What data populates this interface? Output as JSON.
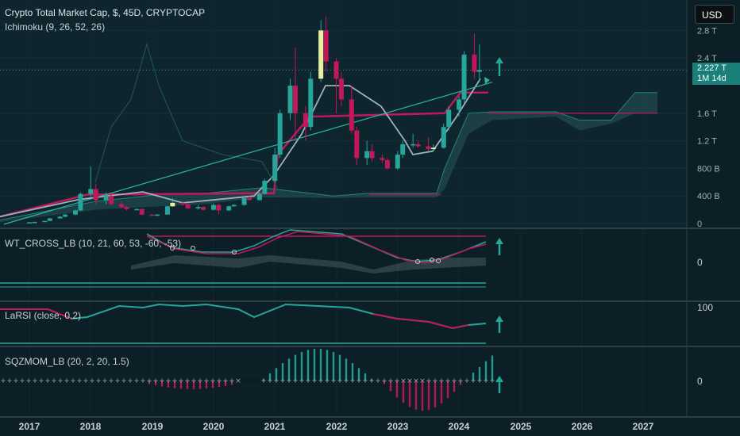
{
  "header": {
    "title": "Crypto Total Market Cap, $, 45D, CRYPTOCAP",
    "indicator": "Ichimoku (9, 26, 52, 26)",
    "currency_button": "USD"
  },
  "price_tag": {
    "value": "2.227 T",
    "countdown": "1M 14d"
  },
  "colors": {
    "background": "#0c1f26",
    "bull": "#26a69a",
    "bear": "#c2185b",
    "doji_highlight": "#e8f0a0",
    "cloud": "#2e5d63",
    "kijun": "#c2185b",
    "tenkan": "#9fb3b8",
    "trendline": "#2bb5a7",
    "arrow": "#26a69a"
  },
  "panes": {
    "wt": {
      "label": "WT_CROSS_LB (10, 21, 60, 53, -60, -53)",
      "zero": "0"
    },
    "larsi": {
      "label": "LaRSI (close, 0.2)",
      "top": "100"
    },
    "sqz": {
      "label": "SQZMOM_LB (20, 2, 20, 1.5)",
      "zero": "0"
    }
  },
  "chart_data": {
    "type": "candlestick",
    "timeframe": "45D",
    "y_axis": {
      "ticks": [
        "0",
        "400 B",
        "800 B",
        "1.2 T",
        "1.6 T",
        "2.4 T",
        "2.8 T"
      ],
      "ylim_trillions": [
        0,
        2.9
      ]
    },
    "x_axis": {
      "ticks": [
        "2017",
        "2018",
        "2019",
        "2020",
        "2021",
        "2022",
        "2023",
        "2024",
        "2025",
        "2026",
        "2027"
      ]
    },
    "last_value": "2.227 T",
    "candles_trillions": [
      {
        "date": "2017-01",
        "o": 0.017,
        "h": 0.02,
        "l": 0.016,
        "c": 0.019
      },
      {
        "date": "2017-02",
        "o": 0.019,
        "h": 0.025,
        "l": 0.018,
        "c": 0.024
      },
      {
        "date": "2017-04",
        "o": 0.024,
        "h": 0.04,
        "l": 0.023,
        "c": 0.038
      },
      {
        "date": "2017-05",
        "o": 0.038,
        "h": 0.08,
        "l": 0.036,
        "c": 0.075
      },
      {
        "date": "2017-07",
        "o": 0.075,
        "h": 0.11,
        "l": 0.07,
        "c": 0.1
      },
      {
        "date": "2017-08",
        "o": 0.1,
        "h": 0.14,
        "l": 0.09,
        "c": 0.13
      },
      {
        "date": "2017-10",
        "o": 0.13,
        "h": 0.2,
        "l": 0.12,
        "c": 0.19
      },
      {
        "date": "2017-11",
        "o": 0.19,
        "h": 0.45,
        "l": 0.18,
        "c": 0.43
      },
      {
        "date": "2018-01",
        "o": 0.43,
        "h": 0.83,
        "l": 0.38,
        "c": 0.5
      },
      {
        "date": "2018-02",
        "o": 0.5,
        "h": 0.58,
        "l": 0.28,
        "c": 0.34
      },
      {
        "date": "2018-04",
        "o": 0.34,
        "h": 0.45,
        "l": 0.28,
        "c": 0.4
      },
      {
        "date": "2018-05",
        "o": 0.4,
        "h": 0.42,
        "l": 0.26,
        "c": 0.28
      },
      {
        "date": "2018-07",
        "o": 0.28,
        "h": 0.32,
        "l": 0.22,
        "c": 0.24
      },
      {
        "date": "2018-08",
        "o": 0.24,
        "h": 0.26,
        "l": 0.19,
        "c": 0.21
      },
      {
        "date": "2018-10",
        "o": 0.21,
        "h": 0.22,
        "l": 0.2,
        "c": 0.21
      },
      {
        "date": "2018-11",
        "o": 0.21,
        "h": 0.22,
        "l": 0.12,
        "c": 0.13
      },
      {
        "date": "2019-01",
        "o": 0.13,
        "h": 0.14,
        "l": 0.11,
        "c": 0.12
      },
      {
        "date": "2019-02",
        "o": 0.12,
        "h": 0.14,
        "l": 0.11,
        "c": 0.13
      },
      {
        "date": "2019-04",
        "o": 0.13,
        "h": 0.26,
        "l": 0.13,
        "c": 0.25
      },
      {
        "date": "2019-05",
        "o": 0.25,
        "h": 0.37,
        "l": 0.24,
        "c": 0.3
      },
      {
        "date": "2019-07",
        "o": 0.3,
        "h": 0.33,
        "l": 0.26,
        "c": 0.28
      },
      {
        "date": "2019-08",
        "o": 0.28,
        "h": 0.29,
        "l": 0.21,
        "c": 0.22
      },
      {
        "date": "2019-10",
        "o": 0.22,
        "h": 0.27,
        "l": 0.2,
        "c": 0.24
      },
      {
        "date": "2019-11",
        "o": 0.24,
        "h": 0.25,
        "l": 0.19,
        "c": 0.2
      },
      {
        "date": "2020-01",
        "o": 0.2,
        "h": 0.29,
        "l": 0.19,
        "c": 0.27
      },
      {
        "date": "2020-02",
        "o": 0.27,
        "h": 0.29,
        "l": 0.13,
        "c": 0.19
      },
      {
        "date": "2020-04",
        "o": 0.19,
        "h": 0.26,
        "l": 0.18,
        "c": 0.25
      },
      {
        "date": "2020-05",
        "o": 0.25,
        "h": 0.28,
        "l": 0.24,
        "c": 0.27
      },
      {
        "date": "2020-07",
        "o": 0.27,
        "h": 0.4,
        "l": 0.26,
        "c": 0.37
      },
      {
        "date": "2020-08",
        "o": 0.37,
        "h": 0.4,
        "l": 0.33,
        "c": 0.34
      },
      {
        "date": "2020-10",
        "o": 0.34,
        "h": 0.45,
        "l": 0.33,
        "c": 0.43
      },
      {
        "date": "2020-11",
        "o": 0.43,
        "h": 0.65,
        "l": 0.42,
        "c": 0.62
      },
      {
        "date": "2021-01",
        "o": 0.62,
        "h": 1.1,
        "l": 0.6,
        "c": 1.0
      },
      {
        "date": "2021-02",
        "o": 1.0,
        "h": 1.65,
        "l": 0.95,
        "c": 1.6
      },
      {
        "date": "2021-04",
        "o": 1.6,
        "h": 2.1,
        "l": 1.5,
        "c": 2.0
      },
      {
        "date": "2021-05",
        "o": 2.0,
        "h": 2.55,
        "l": 1.2,
        "c": 1.6
      },
      {
        "date": "2021-07",
        "o": 1.6,
        "h": 1.7,
        "l": 1.2,
        "c": 1.4
      },
      {
        "date": "2021-08",
        "o": 1.4,
        "h": 2.2,
        "l": 1.35,
        "c": 2.1
      },
      {
        "date": "2021-10",
        "o": 2.1,
        "h": 2.95,
        "l": 2.05,
        "c": 2.8
      },
      {
        "date": "2021-11",
        "o": 2.8,
        "h": 3.0,
        "l": 2.2,
        "c": 2.35
      },
      {
        "date": "2022-01",
        "o": 2.35,
        "h": 2.4,
        "l": 1.6,
        "c": 2.1
      },
      {
        "date": "2022-02",
        "o": 2.1,
        "h": 2.2,
        "l": 1.7,
        "c": 1.8
      },
      {
        "date": "2022-04",
        "o": 1.8,
        "h": 2.0,
        "l": 1.3,
        "c": 1.35
      },
      {
        "date": "2022-05",
        "o": 1.35,
        "h": 1.4,
        "l": 0.85,
        "c": 0.95
      },
      {
        "date": "2022-07",
        "o": 0.95,
        "h": 1.2,
        "l": 0.85,
        "c": 1.05
      },
      {
        "date": "2022-08",
        "o": 1.05,
        "h": 1.15,
        "l": 0.9,
        "c": 0.95
      },
      {
        "date": "2022-10",
        "o": 0.95,
        "h": 1.0,
        "l": 0.88,
        "c": 0.92
      },
      {
        "date": "2022-11",
        "o": 0.92,
        "h": 0.95,
        "l": 0.78,
        "c": 0.8
      },
      {
        "date": "2023-01",
        "o": 0.8,
        "h": 1.05,
        "l": 0.78,
        "c": 1.0
      },
      {
        "date": "2023-02",
        "o": 1.0,
        "h": 1.2,
        "l": 0.95,
        "c": 1.15
      },
      {
        "date": "2023-04",
        "o": 1.15,
        "h": 1.3,
        "l": 1.1,
        "c": 1.15
      },
      {
        "date": "2023-05",
        "o": 1.15,
        "h": 1.2,
        "l": 1.1,
        "c": 1.12
      },
      {
        "date": "2023-07",
        "o": 1.12,
        "h": 1.25,
        "l": 1.05,
        "c": 1.08
      },
      {
        "date": "2023-08",
        "o": 1.08,
        "h": 1.15,
        "l": 1.05,
        "c": 1.1
      },
      {
        "date": "2023-10",
        "o": 1.1,
        "h": 1.45,
        "l": 1.08,
        "c": 1.4
      },
      {
        "date": "2023-11",
        "o": 1.4,
        "h": 1.7,
        "l": 1.35,
        "c": 1.65
      },
      {
        "date": "2024-01",
        "o": 1.65,
        "h": 1.85,
        "l": 1.55,
        "c": 1.8
      },
      {
        "date": "2024-02",
        "o": 1.8,
        "h": 2.5,
        "l": 1.75,
        "c": 2.45
      },
      {
        "date": "2024-04",
        "o": 2.45,
        "h": 2.75,
        "l": 2.1,
        "c": 2.2
      },
      {
        "date": "2024-05",
        "o": 2.2,
        "h": 2.6,
        "l": 2.05,
        "c": 2.227
      }
    ]
  }
}
